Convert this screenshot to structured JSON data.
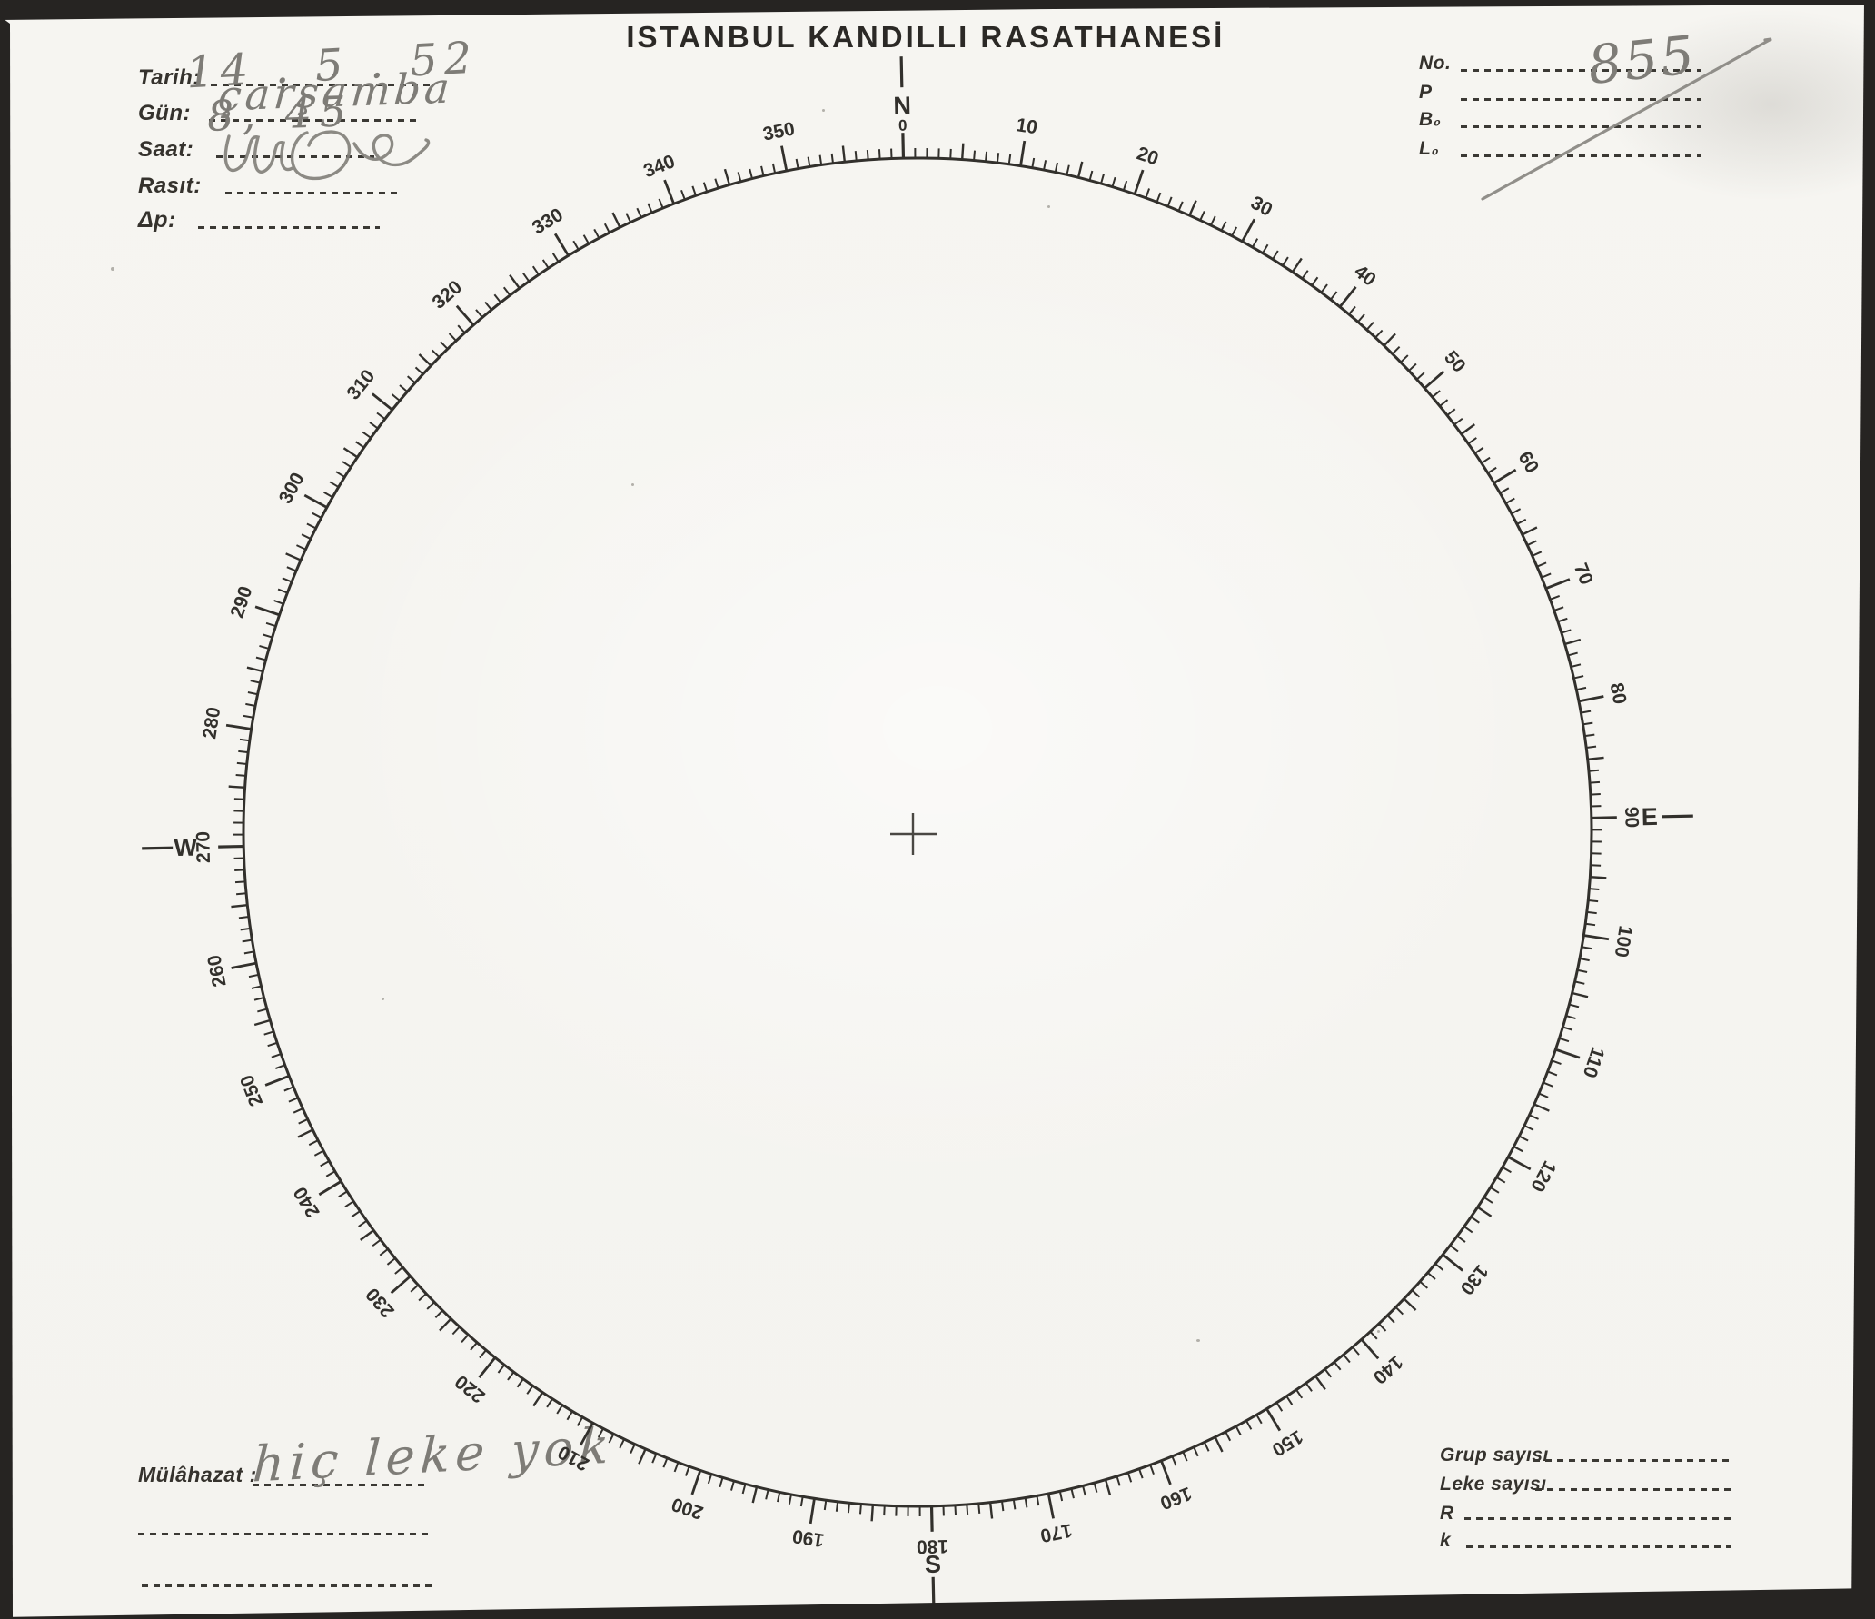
{
  "title": "ISTANBUL KANDILLI RASATHANESİ",
  "header_left": {
    "fields": [
      {
        "label": "Tarih:",
        "value": "14 . 5 . 52"
      },
      {
        "label": "Gün:",
        "value": "çarşamba"
      },
      {
        "label": "Saat:",
        "value": "8, 45"
      },
      {
        "label": "Rasıt:",
        "value": ""
      },
      {
        "label": "Δp:",
        "value": ""
      }
    ]
  },
  "header_right": {
    "fields": [
      {
        "label": "No.",
        "value": "855"
      },
      {
        "label": "P",
        "value": ""
      },
      {
        "label": "B₀",
        "value": ""
      },
      {
        "label": "L₀",
        "value": ""
      }
    ]
  },
  "footer_left": {
    "label": "Mülâhazat :",
    "value": "hiç leke yok"
  },
  "footer_right": {
    "fields": [
      {
        "label": "Grup sayısı",
        "value": ""
      },
      {
        "label": "Leke sayısı",
        "value": ""
      },
      {
        "label": "R",
        "value": ""
      },
      {
        "label": "k",
        "value": ""
      }
    ]
  },
  "dial": {
    "zero_label": "0",
    "degree_labels": [
      "10",
      "20",
      "30",
      "40",
      "50",
      "60",
      "70",
      "80",
      "90",
      "100",
      "110",
      "120",
      "130",
      "140",
      "150",
      "160",
      "170",
      "180",
      "190",
      "200",
      "210",
      "220",
      "230",
      "240",
      "250",
      "260",
      "270",
      "280",
      "290",
      "300",
      "310",
      "320",
      "330",
      "340",
      "350"
    ],
    "cardinals": [
      {
        "angle": 0,
        "letter": "N"
      },
      {
        "angle": 90,
        "letter": "E"
      },
      {
        "angle": 180,
        "letter": "S"
      },
      {
        "angle": 270,
        "letter": "W"
      }
    ]
  },
  "colors": {
    "ink": "#32302c",
    "pencil": "#82807b",
    "paper": "#f6f5f1",
    "edge": "#262422"
  }
}
